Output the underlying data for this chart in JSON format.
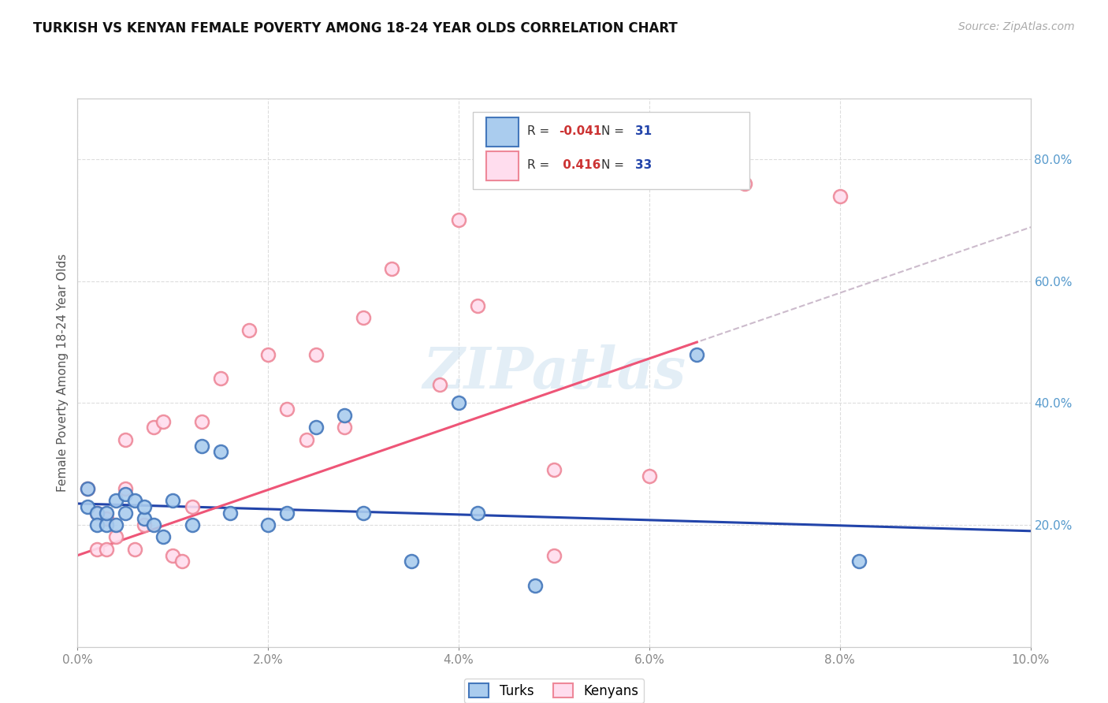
{
  "title": "TURKISH VS KENYAN FEMALE POVERTY AMONG 18-24 YEAR OLDS CORRELATION CHART",
  "source": "Source: ZipAtlas.com",
  "ylabel": "Female Poverty Among 18-24 Year Olds",
  "xlim": [
    0.0,
    0.1
  ],
  "ylim": [
    0.0,
    0.9
  ],
  "xticks": [
    0.0,
    0.02,
    0.04,
    0.06,
    0.08,
    0.1
  ],
  "yticks_right": [
    0.2,
    0.4,
    0.6,
    0.8
  ],
  "background": "#ffffff",
  "turks_face": "#aaccee",
  "turks_edge": "#4477bb",
  "kenyans_face": "#ffddee",
  "kenyans_edge": "#ee8899",
  "turks_line_color": "#2244aa",
  "kenyans_line_color": "#ee5577",
  "dash_color": "#ccbbcc",
  "turks_R": -0.041,
  "turks_N": 31,
  "kenyans_R": 0.416,
  "kenyans_N": 33,
  "turks_x": [
    0.001,
    0.001,
    0.002,
    0.002,
    0.003,
    0.003,
    0.004,
    0.004,
    0.005,
    0.005,
    0.006,
    0.007,
    0.007,
    0.008,
    0.009,
    0.01,
    0.012,
    0.013,
    0.015,
    0.016,
    0.02,
    0.022,
    0.025,
    0.028,
    0.03,
    0.035,
    0.04,
    0.042,
    0.048,
    0.065,
    0.082
  ],
  "turks_y": [
    0.26,
    0.23,
    0.22,
    0.2,
    0.2,
    0.22,
    0.24,
    0.2,
    0.25,
    0.22,
    0.24,
    0.21,
    0.23,
    0.2,
    0.18,
    0.24,
    0.2,
    0.33,
    0.32,
    0.22,
    0.2,
    0.22,
    0.36,
    0.38,
    0.22,
    0.14,
    0.4,
    0.22,
    0.1,
    0.48,
    0.14
  ],
  "kenyans_x": [
    0.001,
    0.002,
    0.002,
    0.003,
    0.003,
    0.004,
    0.005,
    0.005,
    0.006,
    0.007,
    0.008,
    0.009,
    0.01,
    0.011,
    0.012,
    0.013,
    0.015,
    0.018,
    0.02,
    0.022,
    0.024,
    0.025,
    0.028,
    0.03,
    0.033,
    0.038,
    0.04,
    0.042,
    0.05,
    0.05,
    0.06,
    0.07,
    0.08
  ],
  "kenyans_y": [
    0.26,
    0.22,
    0.16,
    0.16,
    0.21,
    0.18,
    0.26,
    0.34,
    0.16,
    0.2,
    0.36,
    0.37,
    0.15,
    0.14,
    0.23,
    0.37,
    0.44,
    0.52,
    0.48,
    0.39,
    0.34,
    0.48,
    0.36,
    0.54,
    0.62,
    0.43,
    0.7,
    0.56,
    0.29,
    0.15,
    0.28,
    0.76,
    0.74
  ],
  "watermark": "ZIPatlas",
  "grid_color": "#dddddd",
  "tick_label_color": "#888888",
  "right_tick_color": "#5599cc"
}
